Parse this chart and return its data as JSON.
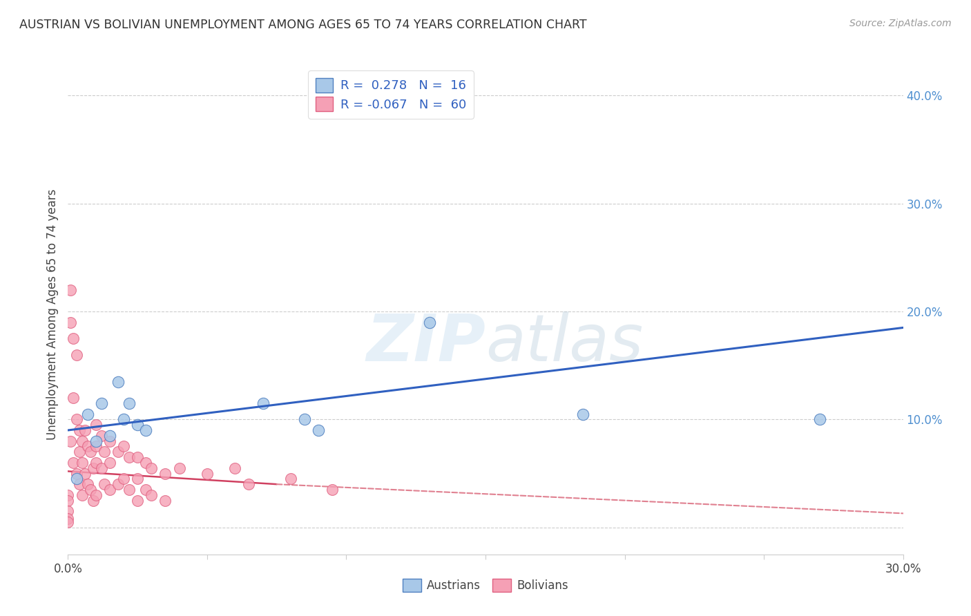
{
  "title": "AUSTRIAN VS BOLIVIAN UNEMPLOYMENT AMONG AGES 65 TO 74 YEARS CORRELATION CHART",
  "source": "Source: ZipAtlas.com",
  "ylabel": "Unemployment Among Ages 65 to 74 years",
  "xlim": [
    0.0,
    0.3
  ],
  "ylim": [
    -0.025,
    0.42
  ],
  "xticks": [
    0.0,
    0.05,
    0.1,
    0.15,
    0.2,
    0.25,
    0.3
  ],
  "xticklabels": [
    "0.0%",
    "",
    "",
    "",
    "",
    "",
    "30.0%"
  ],
  "yticks_right": [
    0.0,
    0.1,
    0.2,
    0.3,
    0.4
  ],
  "yticks_right_labels": [
    "",
    "10.0%",
    "20.0%",
    "30.0%",
    "40.0%"
  ],
  "legend_aus_R": "0.278",
  "legend_aus_N": "16",
  "legend_bol_R": "-0.067",
  "legend_bol_N": "60",
  "aus_color": "#a8c8e8",
  "bol_color": "#f5a0b5",
  "aus_edge": "#5080c0",
  "bol_edge": "#e06080",
  "trend_aus_color": "#3060c0",
  "trend_bol_solid_color": "#d04060",
  "trend_bol_dash_color": "#e08090",
  "watermark": "ZIPatlas",
  "bg_color": "#ffffff",
  "grid_color": "#cccccc",
  "aus_x": [
    0.003,
    0.007,
    0.01,
    0.012,
    0.015,
    0.018,
    0.02,
    0.022,
    0.025,
    0.028,
    0.07,
    0.085,
    0.09,
    0.13,
    0.185,
    0.27
  ],
  "aus_y": [
    0.045,
    0.105,
    0.08,
    0.115,
    0.085,
    0.135,
    0.1,
    0.115,
    0.095,
    0.09,
    0.115,
    0.1,
    0.09,
    0.19,
    0.105,
    0.1
  ],
  "bol_x": [
    0.0,
    0.0,
    0.0,
    0.0,
    0.0,
    0.001,
    0.001,
    0.001,
    0.002,
    0.002,
    0.002,
    0.003,
    0.003,
    0.003,
    0.004,
    0.004,
    0.004,
    0.005,
    0.005,
    0.005,
    0.006,
    0.006,
    0.007,
    0.007,
    0.008,
    0.008,
    0.009,
    0.009,
    0.01,
    0.01,
    0.01,
    0.01,
    0.012,
    0.012,
    0.013,
    0.013,
    0.015,
    0.015,
    0.015,
    0.018,
    0.018,
    0.02,
    0.02,
    0.022,
    0.022,
    0.025,
    0.025,
    0.025,
    0.028,
    0.028,
    0.03,
    0.03,
    0.035,
    0.035,
    0.04,
    0.05,
    0.06,
    0.065,
    0.08,
    0.095
  ],
  "bol_y": [
    0.03,
    0.025,
    0.015,
    0.008,
    0.005,
    0.22,
    0.19,
    0.08,
    0.175,
    0.12,
    0.06,
    0.16,
    0.1,
    0.05,
    0.09,
    0.07,
    0.04,
    0.08,
    0.06,
    0.03,
    0.09,
    0.05,
    0.075,
    0.04,
    0.07,
    0.035,
    0.055,
    0.025,
    0.095,
    0.075,
    0.06,
    0.03,
    0.085,
    0.055,
    0.07,
    0.04,
    0.08,
    0.06,
    0.035,
    0.07,
    0.04,
    0.075,
    0.045,
    0.065,
    0.035,
    0.065,
    0.045,
    0.025,
    0.06,
    0.035,
    0.055,
    0.03,
    0.05,
    0.025,
    0.055,
    0.05,
    0.055,
    0.04,
    0.045,
    0.035
  ],
  "trend_aus_x0": 0.0,
  "trend_aus_y0": 0.09,
  "trend_aus_x1": 0.3,
  "trend_aus_y1": 0.185,
  "trend_bol_solid_x0": 0.0,
  "trend_bol_solid_y0": 0.052,
  "trend_bol_solid_x1": 0.075,
  "trend_bol_solid_y1": 0.04,
  "trend_bol_dash_x0": 0.075,
  "trend_bol_dash_y0": 0.04,
  "trend_bol_dash_x1": 0.3,
  "trend_bol_dash_y1": 0.013
}
